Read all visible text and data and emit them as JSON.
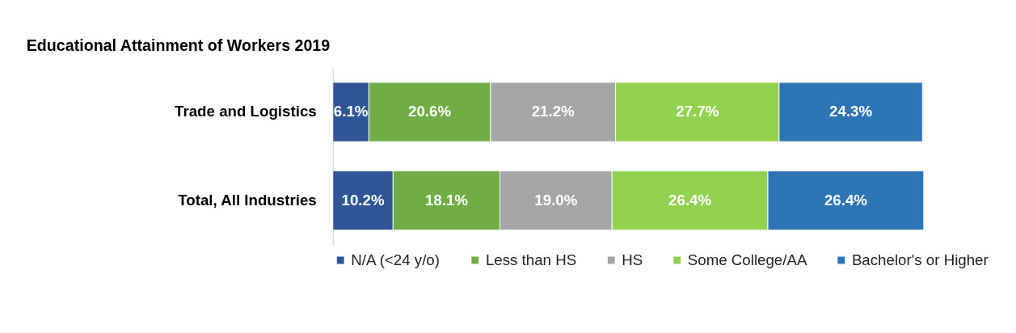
{
  "chart_data": {
    "type": "bar",
    "orientation": "horizontal",
    "stacked": true,
    "title": "Educational Attainment of Workers 2019",
    "categories": [
      "Trade and Logistics",
      "Total, All Industries"
    ],
    "series": [
      {
        "name": "N/A (<24 y/o)",
        "color": "#2f5597",
        "values": [
          6.1,
          10.2
        ],
        "value_labels": [
          "6.1%",
          "10.2%"
        ]
      },
      {
        "name": "Less than HS",
        "color": "#70ad47",
        "values": [
          20.6,
          18.1
        ],
        "value_labels": [
          "20.6%",
          "18.1%"
        ]
      },
      {
        "name": "HS",
        "color": "#a5a5a5",
        "values": [
          21.2,
          19.0
        ],
        "value_labels": [
          "21.2%",
          "19.0%"
        ]
      },
      {
        "name": "Some College/AA",
        "color": "#92d050",
        "values": [
          27.7,
          26.4
        ],
        "value_labels": [
          "27.7%",
          "26.4%"
        ]
      },
      {
        "name": "Bachelor's or Higher",
        "color": "#2e75b6",
        "values": [
          24.3,
          26.4
        ],
        "value_labels": [
          "24.3%",
          "26.4%"
        ]
      }
    ],
    "xlim": [
      0,
      100.1
    ],
    "legend": "bottom"
  }
}
